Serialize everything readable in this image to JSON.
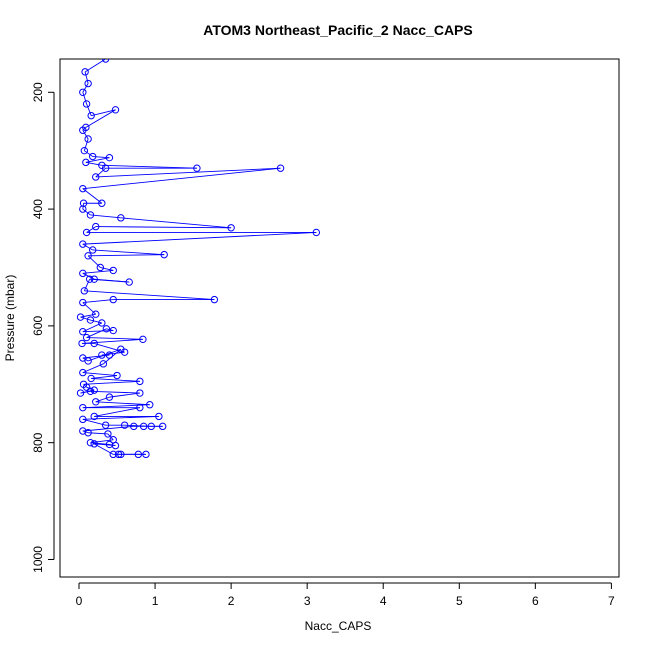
{
  "chart_data": {
    "type": "line",
    "title": "ATOM3 Northeast_Pacific_2 Nacc_CAPS",
    "xlabel": "Nacc_CAPS",
    "ylabel": "Pressure (mbar)",
    "xlim": [
      -0.25,
      7.1
    ],
    "ylim": [
      1030,
      143
    ],
    "y_inverted": true,
    "xticks": [
      0,
      1,
      2,
      3,
      4,
      5,
      6,
      7
    ],
    "yticks": [
      200,
      400,
      600,
      800,
      1000
    ],
    "marker": "open-circle",
    "grid": false,
    "color": "#0000ff",
    "series": [
      {
        "points": [
          [
            0.35,
            143
          ],
          [
            0.08,
            165
          ],
          [
            0.12,
            185
          ],
          [
            0.05,
            200
          ],
          [
            0.1,
            220
          ],
          [
            0.16,
            240
          ],
          [
            0.48,
            230
          ],
          [
            0.09,
            260
          ],
          [
            0.05,
            265
          ],
          [
            0.12,
            280
          ],
          [
            0.07,
            300
          ],
          [
            0.18,
            310
          ],
          [
            0.4,
            312
          ],
          [
            0.09,
            320
          ],
          [
            0.3,
            325
          ],
          [
            1.55,
            330
          ],
          [
            0.35,
            330
          ],
          [
            0.22,
            345
          ],
          [
            2.65,
            330
          ],
          [
            0.05,
            365
          ],
          [
            0.3,
            390
          ],
          [
            0.06,
            390
          ],
          [
            0.05,
            400
          ],
          [
            0.15,
            410
          ],
          [
            0.55,
            415
          ],
          [
            2.0,
            432
          ],
          [
            0.22,
            430
          ],
          [
            0.1,
            440
          ],
          [
            3.12,
            440
          ],
          [
            0.05,
            460
          ],
          [
            0.18,
            470
          ],
          [
            1.12,
            478
          ],
          [
            0.12,
            480
          ],
          [
            0.28,
            500
          ],
          [
            0.45,
            505
          ],
          [
            0.05,
            510
          ],
          [
            0.2,
            520
          ],
          [
            0.66,
            525
          ],
          [
            0.14,
            520
          ],
          [
            0.07,
            540
          ],
          [
            1.78,
            555
          ],
          [
            0.45,
            555
          ],
          [
            0.05,
            560
          ],
          [
            0.22,
            580
          ],
          [
            0.02,
            585
          ],
          [
            0.15,
            590
          ],
          [
            0.3,
            595
          ],
          [
            0.05,
            610
          ],
          [
            0.45,
            608
          ],
          [
            0.36,
            605
          ],
          [
            0.1,
            620
          ],
          [
            0.84,
            623
          ],
          [
            0.04,
            630
          ],
          [
            0.2,
            630
          ],
          [
            0.6,
            645
          ],
          [
            0.3,
            650
          ],
          [
            0.4,
            650
          ],
          [
            0.05,
            655
          ],
          [
            0.12,
            660
          ],
          [
            0.55,
            640
          ],
          [
            0.32,
            665
          ],
          [
            0.05,
            680
          ],
          [
            0.5,
            685
          ],
          [
            0.16,
            690
          ],
          [
            0.8,
            695
          ],
          [
            0.06,
            700
          ],
          [
            0.1,
            705
          ],
          [
            0.2,
            710
          ],
          [
            0.02,
            715
          ],
          [
            0.15,
            712
          ],
          [
            0.8,
            715
          ],
          [
            0.4,
            722
          ],
          [
            0.22,
            730
          ],
          [
            0.93,
            735
          ],
          [
            0.05,
            740
          ],
          [
            0.8,
            740
          ],
          [
            0.2,
            755
          ],
          [
            1.05,
            755
          ],
          [
            0.05,
            760
          ],
          [
            0.35,
            770
          ],
          [
            0.6,
            770
          ],
          [
            0.95,
            772
          ],
          [
            1.1,
            772
          ],
          [
            0.85,
            772
          ],
          [
            0.72,
            772
          ],
          [
            0.05,
            780
          ],
          [
            0.12,
            783
          ],
          [
            0.38,
            785
          ],
          [
            0.45,
            795
          ],
          [
            0.15,
            800
          ],
          [
            0.4,
            803
          ],
          [
            0.48,
            805
          ],
          [
            0.2,
            802
          ],
          [
            0.45,
            820
          ],
          [
            0.55,
            820
          ],
          [
            0.78,
            820
          ],
          [
            0.88,
            820
          ],
          [
            0.52,
            820
          ]
        ]
      }
    ]
  }
}
